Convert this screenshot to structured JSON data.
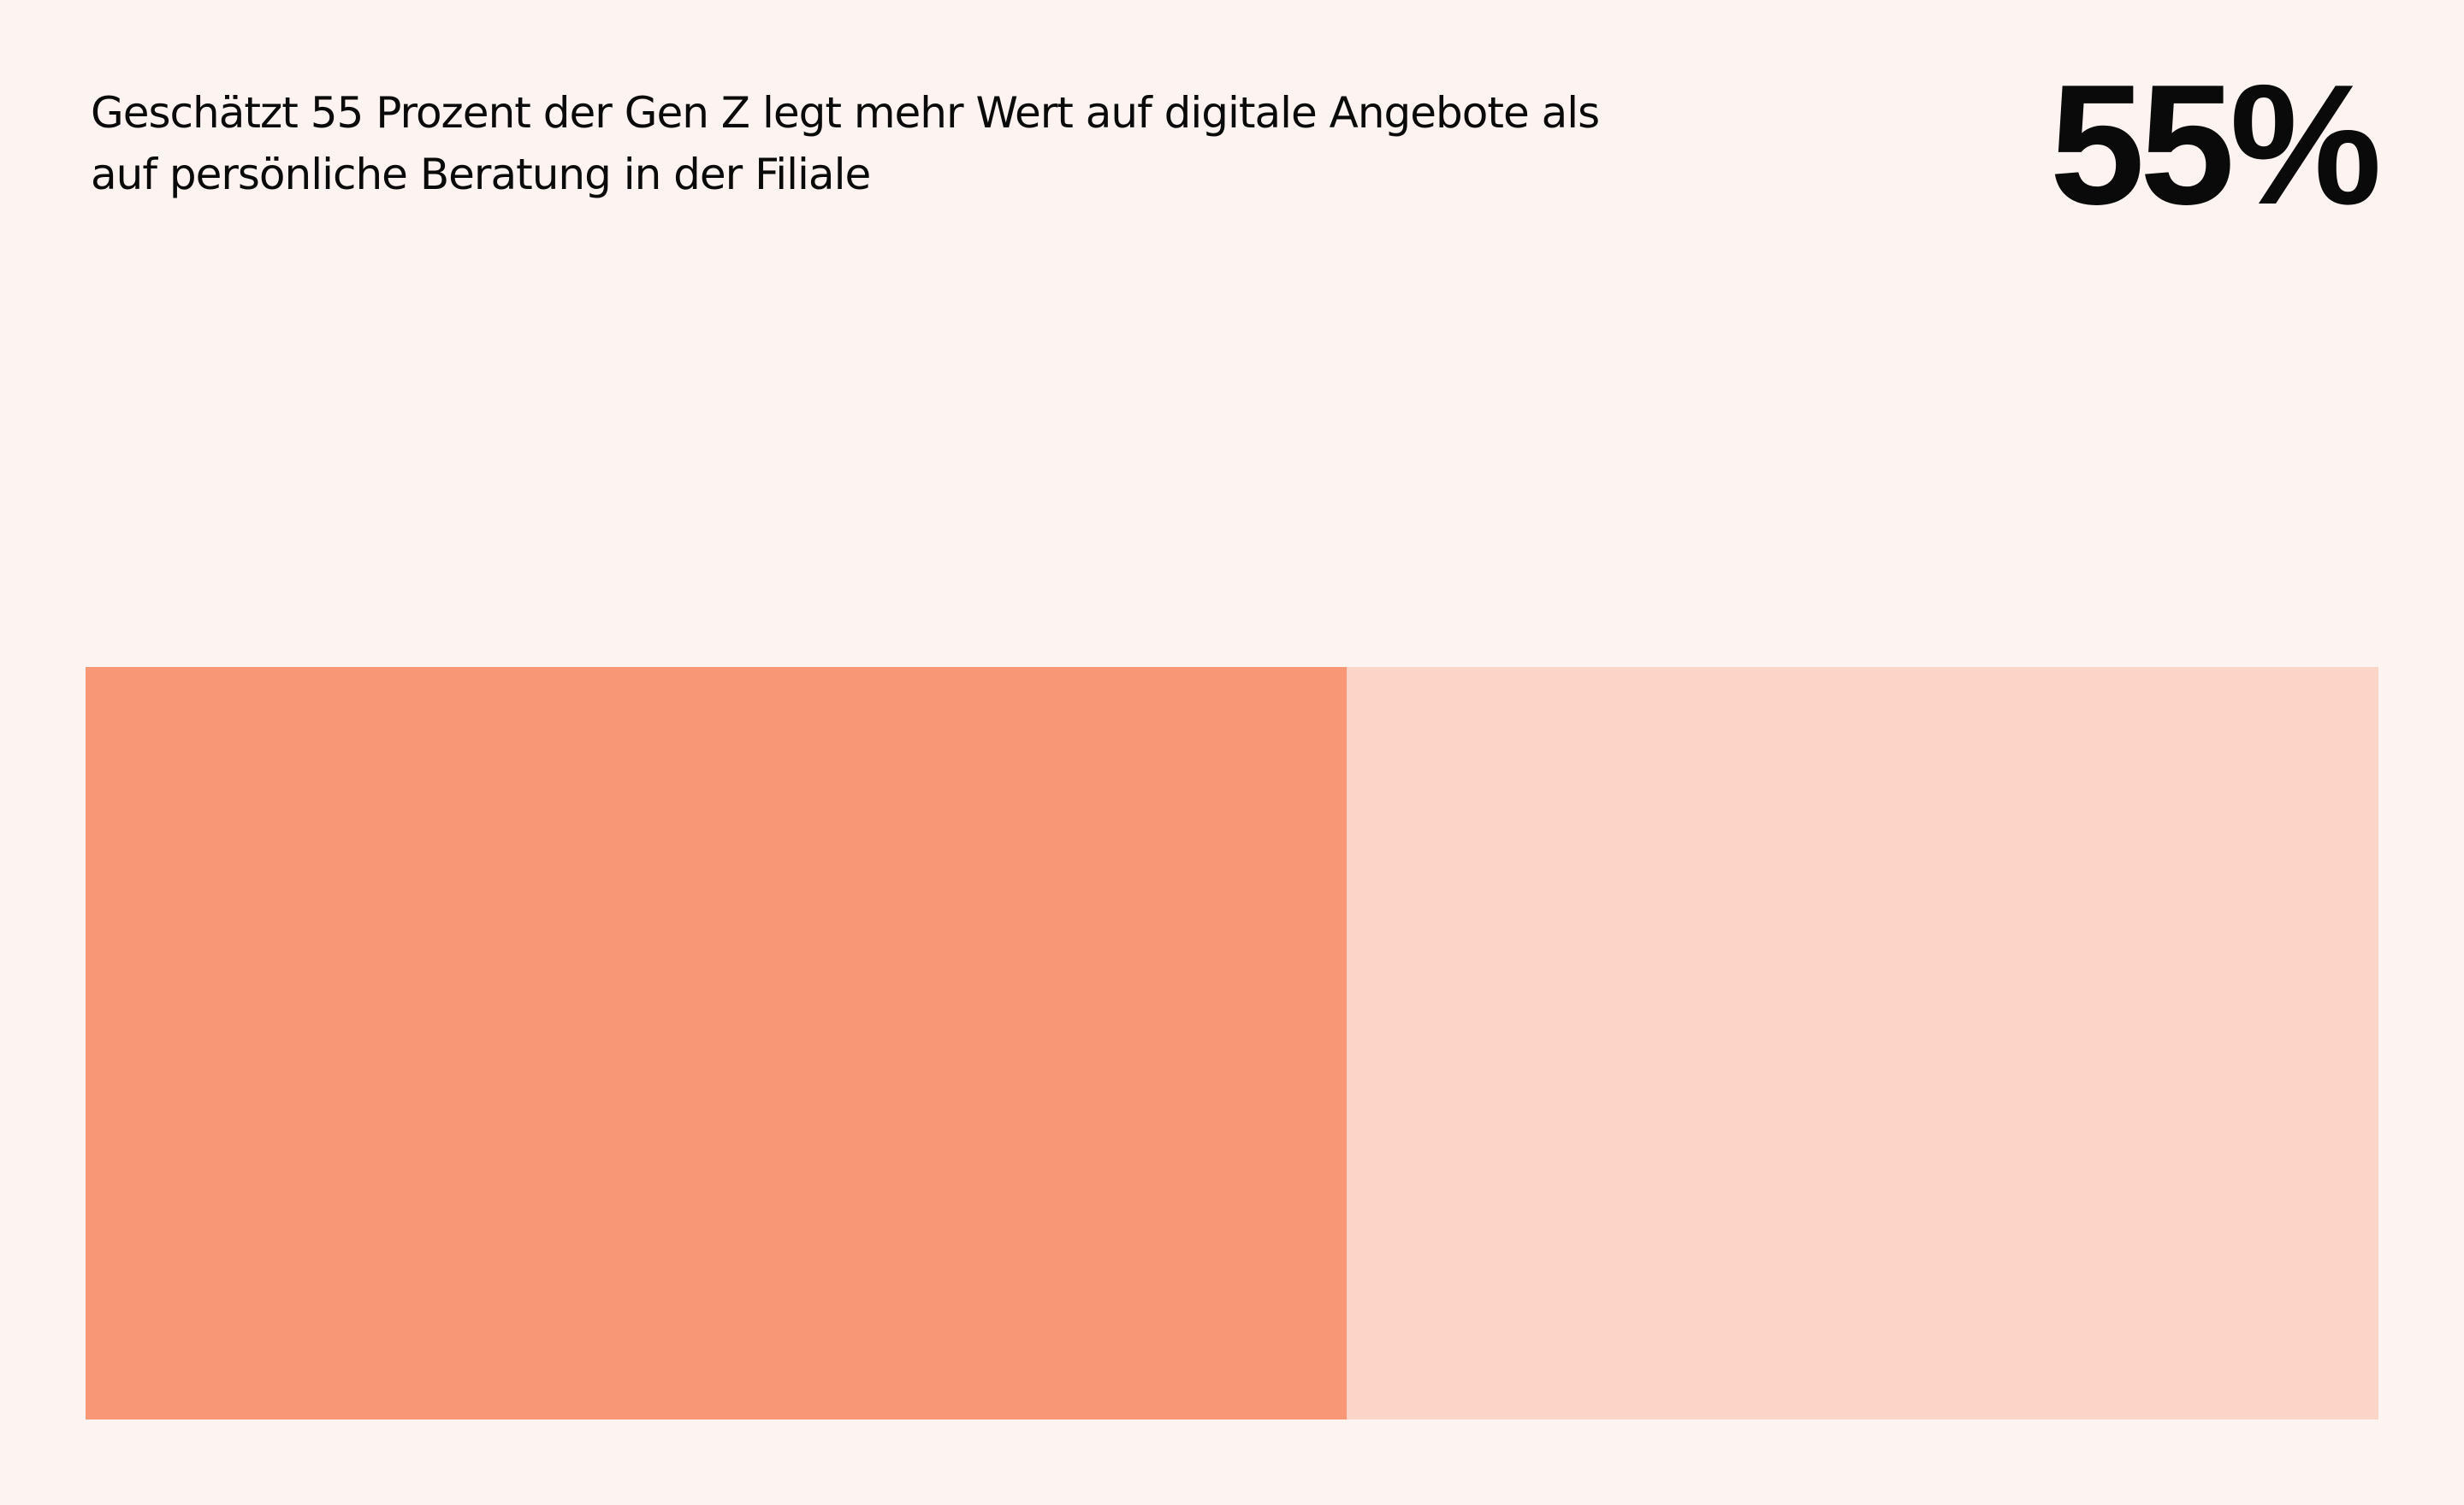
{
  "headline": {
    "line1": "Geschätzt 55 Prozent der Gen Z legt mehr Wert auf digitale Angebote als",
    "line2": "auf persönliche Beratung in der Filiale"
  },
  "big_value": "55%",
  "chart_data": {
    "type": "bar",
    "orientation": "horizontal-stacked",
    "title": "Geschätzt 55 Prozent der Gen Z legt mehr Wert auf digitale Angebote als auf persönliche Beratung in der Filiale",
    "value_label": "55%",
    "series": [
      {
        "values": [
          55
        ],
        "color": "#F89775"
      },
      {
        "values": [
          45
        ],
        "color": "#FCD4C8"
      }
    ],
    "xlim": [
      0,
      100
    ],
    "grid": false,
    "legend": "none"
  }
}
